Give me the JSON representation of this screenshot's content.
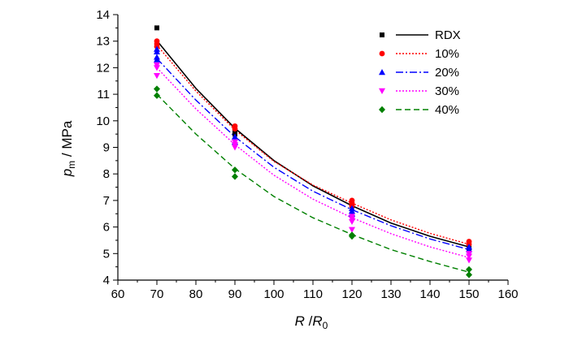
{
  "chart_data": {
    "type": "scatter",
    "title": "",
    "xlabel": {
      "main": "R",
      "sep": " /",
      "main2": "R",
      "sub2": "0"
    },
    "ylabel": {
      "main": "p",
      "sub": "m",
      "rest": " / MPa"
    },
    "xlim": [
      60,
      160
    ],
    "ylim": [
      4,
      14
    ],
    "xticks": [
      60,
      70,
      80,
      90,
      100,
      110,
      120,
      130,
      140,
      150,
      160
    ],
    "yticks": [
      4,
      5,
      6,
      7,
      8,
      9,
      10,
      11,
      12,
      13,
      14
    ],
    "x_minor_step": 5,
    "y_minor_step": 0.5,
    "grid": false,
    "legend_position": "top-right",
    "series": [
      {
        "name": "RDX",
        "color": "#000000",
        "marker": "square",
        "line_style": "solid",
        "points": [
          [
            70,
            13.5
          ],
          [
            70,
            12.9
          ],
          [
            90,
            9.6
          ],
          [
            90,
            9.5
          ],
          [
            120,
            6.9
          ],
          [
            120,
            6.8
          ],
          [
            150,
            5.3
          ],
          [
            150,
            5.2
          ]
        ],
        "fit": [
          [
            70,
            13.02
          ],
          [
            80,
            11.22
          ],
          [
            90,
            9.72
          ],
          [
            100,
            8.5
          ],
          [
            110,
            7.55
          ],
          [
            120,
            6.8
          ],
          [
            130,
            6.15
          ],
          [
            140,
            5.65
          ],
          [
            150,
            5.25
          ]
        ]
      },
      {
        "name": "10%",
        "color": "#ff0000",
        "marker": "circle",
        "line_style": "dotted",
        "points": [
          [
            70,
            13.0
          ],
          [
            70,
            12.9
          ],
          [
            70,
            12.8
          ],
          [
            90,
            9.8
          ],
          [
            90,
            9.7
          ],
          [
            120,
            7.0
          ],
          [
            120,
            6.9
          ],
          [
            120,
            6.8
          ],
          [
            150,
            5.45
          ],
          [
            150,
            5.35
          ]
        ],
        "fit": [
          [
            70,
            12.85
          ],
          [
            80,
            11.12
          ],
          [
            90,
            9.66
          ],
          [
            100,
            8.47
          ],
          [
            110,
            7.58
          ],
          [
            120,
            6.9
          ],
          [
            130,
            6.27
          ],
          [
            140,
            5.76
          ],
          [
            150,
            5.35
          ]
        ]
      },
      {
        "name": "20%",
        "color": "#0000ff",
        "marker": "triangle-up",
        "line_style": "dashdot",
        "points": [
          [
            70,
            12.7
          ],
          [
            70,
            12.6
          ],
          [
            70,
            12.4
          ],
          [
            70,
            12.3
          ],
          [
            90,
            9.4
          ],
          [
            90,
            9.2
          ],
          [
            120,
            6.7
          ],
          [
            120,
            6.6
          ],
          [
            120,
            6.5
          ],
          [
            150,
            5.25
          ],
          [
            150,
            5.15
          ]
        ],
        "fit": [
          [
            70,
            12.35
          ],
          [
            80,
            10.78
          ],
          [
            90,
            9.4
          ],
          [
            100,
            8.25
          ],
          [
            110,
            7.35
          ],
          [
            120,
            6.65
          ],
          [
            130,
            6.05
          ],
          [
            140,
            5.55
          ],
          [
            150,
            5.15
          ]
        ]
      },
      {
        "name": "30%",
        "color": "#ff00ff",
        "marker": "triangle-down",
        "line_style": "dotted",
        "points": [
          [
            70,
            12.1
          ],
          [
            70,
            12.0
          ],
          [
            70,
            11.7
          ],
          [
            90,
            9.2
          ],
          [
            90,
            9.1
          ],
          [
            90,
            9.0
          ],
          [
            120,
            6.4
          ],
          [
            120,
            6.3
          ],
          [
            120,
            6.2
          ],
          [
            120,
            5.9
          ],
          [
            150,
            5.0
          ],
          [
            150,
            4.9
          ],
          [
            150,
            4.75
          ]
        ],
        "fit": [
          [
            70,
            12.0
          ],
          [
            80,
            10.45
          ],
          [
            90,
            9.1
          ],
          [
            100,
            7.95
          ],
          [
            110,
            7.05
          ],
          [
            120,
            6.35
          ],
          [
            130,
            5.75
          ],
          [
            140,
            5.25
          ],
          [
            150,
            4.85
          ]
        ]
      },
      {
        "name": "40%",
        "color": "#008000",
        "marker": "diamond",
        "line_style": "dashed",
        "points": [
          [
            70,
            11.2
          ],
          [
            70,
            10.95
          ],
          [
            90,
            8.15
          ],
          [
            90,
            7.9
          ],
          [
            120,
            5.7
          ],
          [
            120,
            5.65
          ],
          [
            150,
            4.4
          ],
          [
            150,
            4.2
          ]
        ],
        "fit": [
          [
            70,
            11.0
          ],
          [
            80,
            9.5
          ],
          [
            90,
            8.2
          ],
          [
            100,
            7.15
          ],
          [
            110,
            6.35
          ],
          [
            120,
            5.72
          ],
          [
            130,
            5.15
          ],
          [
            140,
            4.7
          ],
          [
            150,
            4.3
          ]
        ]
      }
    ]
  }
}
